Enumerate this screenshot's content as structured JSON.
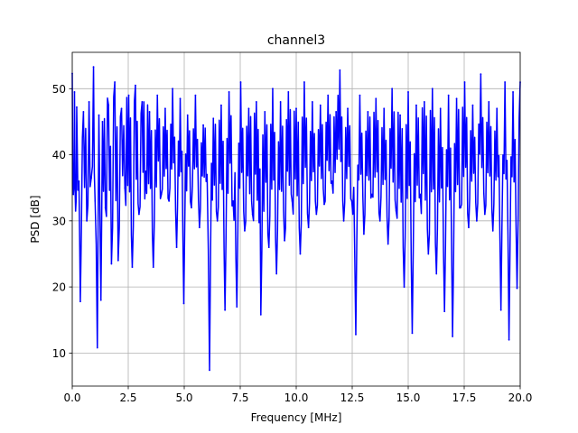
{
  "chart_data": {
    "type": "line",
    "title": "channel3",
    "xlabel": "Frequency [MHz]",
    "ylabel": "PSD [dB]",
    "xlim": [
      0,
      20
    ],
    "ylim": [
      5,
      55.5
    ],
    "x_ticks": [
      0,
      2.5,
      5,
      7.5,
      10,
      12.5,
      15,
      17.5,
      20
    ],
    "x_tick_labels": [
      "0.0",
      "2.5",
      "5.0",
      "7.5",
      "10.0",
      "12.5",
      "15.0",
      "17.5",
      "20.0"
    ],
    "y_ticks": [
      10,
      20,
      30,
      40,
      50
    ],
    "y_tick_labels": [
      "10",
      "20",
      "30",
      "40",
      "50"
    ],
    "grid": true,
    "line_color": "#0000ff",
    "series": [
      {
        "x": [
          0.0,
          0.05,
          0.1,
          0.15,
          0.2,
          0.3,
          0.36,
          0.5,
          0.65,
          0.75,
          0.85,
          0.95,
          1.02,
          1.12,
          1.19,
          1.28,
          1.35,
          1.48,
          1.62,
          1.75,
          1.9,
          2.05,
          2.2,
          2.35,
          2.52,
          2.68,
          2.82,
          2.98,
          3.12,
          3.28,
          3.45,
          3.62,
          3.8,
          3.98,
          4.15,
          4.32,
          4.48,
          4.66,
          4.82,
          4.98,
          5.15,
          5.32,
          5.5,
          5.68,
          5.85,
          6.02,
          6.13,
          6.3,
          6.48,
          6.65,
          6.82,
          7.0,
          7.18,
          7.35,
          7.52,
          7.7,
          7.88,
          8.05,
          8.22,
          8.42,
          8.6,
          8.78,
          8.95,
          9.12,
          9.3,
          9.48,
          9.65,
          9.82,
          10.0,
          10.18,
          10.36,
          10.55,
          10.72,
          10.9,
          11.08,
          11.25,
          11.42,
          11.6,
          11.78,
          11.95,
          12.12,
          12.3,
          12.48,
          12.66,
          12.84,
          13.02,
          13.2,
          13.38,
          13.56,
          13.74,
          13.92,
          14.1,
          14.28,
          14.46,
          14.64,
          14.82,
          15.0,
          15.18,
          15.36,
          15.54,
          15.72,
          15.9,
          16.08,
          16.26,
          16.44,
          16.62,
          16.8,
          16.98,
          17.16,
          17.34,
          17.52,
          17.7,
          17.88,
          18.06,
          18.24,
          18.42,
          18.6,
          18.78,
          18.96,
          19.14,
          19.32,
          19.5,
          19.68,
          19.86,
          20.0
        ],
        "y": [
          52.3,
          34.0,
          49.5,
          31.5,
          47.2,
          36.0,
          17.8,
          46.5,
          30.0,
          48.0,
          36.5,
          53.3,
          33.0,
          10.8,
          46.0,
          18.0,
          45.0,
          32.0,
          47.5,
          23.5,
          51.0,
          24.0,
          47.0,
          35.0,
          49.0,
          23.0,
          50.5,
          31.0,
          48.0,
          37.5,
          46.5,
          23.0,
          49.0,
          34.0,
          47.0,
          33.0,
          50.0,
          26.0,
          48.5,
          17.5,
          46.0,
          32.0,
          49.0,
          29.0,
          44.5,
          37.0,
          7.4,
          45.5,
          30.0,
          47.5,
          16.5,
          49.5,
          33.0,
          17.0,
          51.0,
          28.5,
          47.0,
          31.0,
          48.0,
          15.8,
          46.5,
          26.0,
          50.0,
          22.0,
          48.0,
          27.0,
          49.5,
          33.0,
          47.0,
          25.0,
          51.0,
          29.0,
          48.0,
          31.0,
          47.5,
          32.5,
          49.0,
          36.0,
          46.5,
          52.8,
          30.0,
          47.0,
          33.0,
          12.8,
          49.0,
          28.0,
          46.5,
          34.0,
          48.5,
          30.0,
          47.0,
          26.5,
          50.0,
          31.5,
          46.0,
          20.0,
          49.5,
          13.0,
          47.5,
          34.0,
          48.0,
          25.0,
          50.0,
          22.0,
          47.0,
          16.3,
          49.0,
          12.5,
          48.5,
          32.0,
          51.0,
          29.0,
          47.5,
          30.0,
          52.2,
          31.0,
          48.0,
          28.5,
          47.0,
          16.5,
          51.0,
          12.0,
          49.5,
          19.8,
          51.0
        ]
      }
    ]
  }
}
